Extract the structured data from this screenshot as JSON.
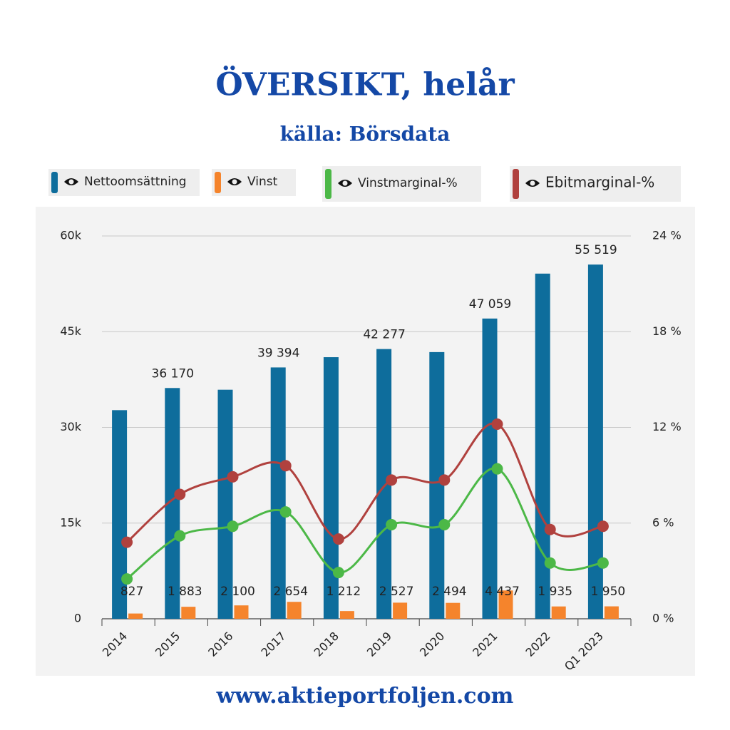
{
  "chart_data": {
    "type": "bar",
    "title": "ÖVERSIKT, helår",
    "subtitle": "källa: Börsdata",
    "footer": "www.aktieportfoljen.com",
    "categories": [
      "2014",
      "2015",
      "2016",
      "2017",
      "2018",
      "2019",
      "2020",
      "2021",
      "2022",
      "Q1 2023"
    ],
    "ylim": [
      0,
      60000
    ],
    "yticks": [
      {
        "value": 0,
        "label": "0"
      },
      {
        "value": 15000,
        "label": "15k"
      },
      {
        "value": 30000,
        "label": "30k"
      },
      {
        "value": 45000,
        "label": "45k"
      },
      {
        "value": 60000,
        "label": "60k"
      }
    ],
    "y2lim": [
      0,
      24
    ],
    "y2ticks": [
      {
        "value": 0,
        "label": "0 %"
      },
      {
        "value": 6,
        "label": "6 %"
      },
      {
        "value": 12,
        "label": "12 %"
      },
      {
        "value": 18,
        "label": "18 %"
      },
      {
        "value": 24,
        "label": "24 %"
      }
    ],
    "grid": true,
    "series": [
      {
        "name": "Nettoomsättning",
        "type": "bar",
        "color": "#0e6d9c",
        "values": [
          32700,
          36170,
          35900,
          39394,
          41000,
          42277,
          41800,
          47059,
          54100,
          55519
        ],
        "value_labels": [
          null,
          "36 170",
          null,
          "39 394",
          null,
          "42 277",
          null,
          "47 059",
          null,
          "55 519"
        ]
      },
      {
        "name": "Vinst",
        "type": "bar",
        "color": "#f5842c",
        "values": [
          827,
          1883,
          2100,
          2654,
          1212,
          2527,
          2494,
          4437,
          1935,
          1950
        ],
        "value_labels": [
          "827",
          "1 883",
          "2 100",
          "2 654",
          "1 212",
          "2 527",
          "2 494",
          "4 437",
          "1 935",
          "1 950"
        ]
      },
      {
        "name": "Vinstmarginal-%",
        "type": "line",
        "axis": "y2",
        "color": "#4cb847",
        "values": [
          2.5,
          5.2,
          5.8,
          6.7,
          2.9,
          5.9,
          5.9,
          9.4,
          3.5,
          3.5
        ]
      },
      {
        "name": "Ebitmarginal-%",
        "type": "line",
        "axis": "y2",
        "color": "#b0413e",
        "values": [
          4.8,
          7.8,
          8.9,
          9.6,
          5.0,
          8.7,
          8.7,
          12.2,
          5.6,
          5.8
        ]
      }
    ]
  }
}
